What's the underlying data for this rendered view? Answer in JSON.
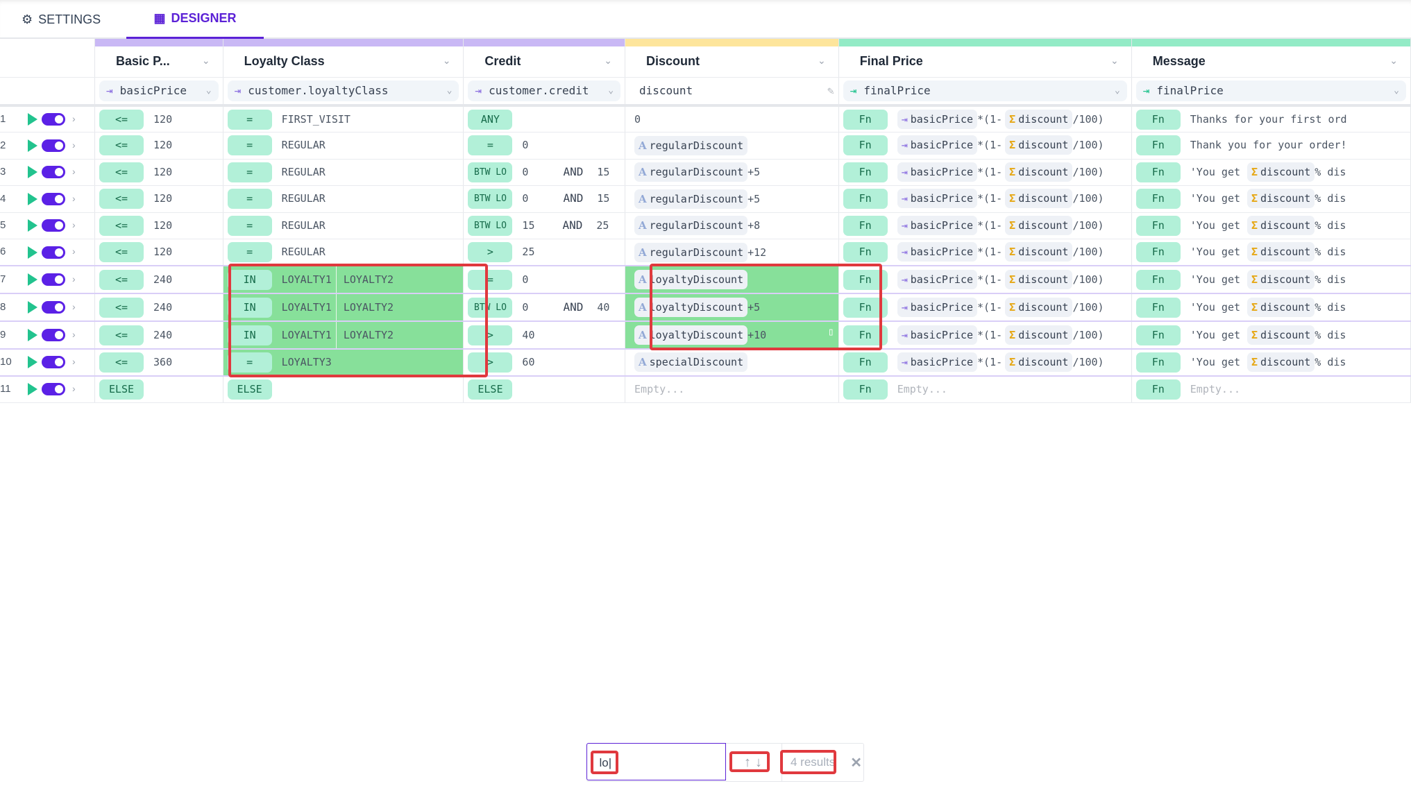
{
  "tabs": [
    {
      "label": "SETTINGS",
      "icon": "gear-icon"
    },
    {
      "label": "DESIGNER",
      "icon": "table-icon",
      "active": true
    }
  ],
  "colors": {
    "accent": "#5b21d6",
    "input_bar": "#c9b8f5",
    "output_bar_discount": "#fde59c",
    "output_bar": "#93ebc6",
    "badge": "#b2f0d8",
    "highlight": "#87e09a",
    "search_highlight": "#e0393e"
  },
  "columns": [
    {
      "title": "Basic P...",
      "expr": "basicPrice",
      "type": "input",
      "bar": "#c9b8f5"
    },
    {
      "title": "Loyalty Class",
      "expr": "customer.loyaltyClass",
      "type": "input",
      "bar": "#c9b8f5"
    },
    {
      "title": "Credit",
      "expr": "customer.credit",
      "type": "input",
      "bar": "#c9b8f5"
    },
    {
      "title": "Discount",
      "expr": "discount",
      "type": "output-editable",
      "bar": "#fde59c"
    },
    {
      "title": "Final Price",
      "expr": "finalPrice",
      "type": "output",
      "bar": "#93ebc6"
    },
    {
      "title": "Message",
      "expr": "finalPrice",
      "type": "output",
      "bar": "#93ebc6"
    }
  ],
  "rows": [
    {
      "num": "1",
      "basic": [
        "<=",
        "120"
      ],
      "loyalty": [
        "=",
        "FIRST_VISIT"
      ],
      "credit": [
        "ANY"
      ],
      "discount": {
        "text": "0"
      },
      "final": "expr",
      "message": {
        "text": "Thanks for your first ord"
      }
    },
    {
      "num": "2",
      "basic": [
        "<=",
        "120"
      ],
      "loyalty": [
        "=",
        "REGULAR"
      ],
      "credit": [
        "=",
        "0"
      ],
      "discount": {
        "var": "regularDiscount",
        "suffix": ""
      },
      "final": "expr",
      "message": {
        "text": "Thank you for your order!"
      }
    },
    {
      "num": "3",
      "basic": [
        "<=",
        "120"
      ],
      "loyalty": [
        "=",
        "REGULAR"
      ],
      "credit": [
        "BTW LO",
        "0",
        "AND",
        "15"
      ],
      "discount": {
        "var": "regularDiscount",
        "suffix": "+5"
      },
      "final": "expr",
      "message": {
        "pre": "'You get",
        "var": "discount",
        "post": "% dis"
      }
    },
    {
      "num": "4",
      "basic": [
        "<=",
        "120"
      ],
      "loyalty": [
        "=",
        "REGULAR"
      ],
      "credit": [
        "BTW LO",
        "0",
        "AND",
        "15"
      ],
      "discount": {
        "var": "regularDiscount",
        "suffix": "+5"
      },
      "final": "expr",
      "message": {
        "pre": "'You get",
        "var": "discount",
        "post": "% dis"
      }
    },
    {
      "num": "5",
      "basic": [
        "<=",
        "120"
      ],
      "loyalty": [
        "=",
        "REGULAR"
      ],
      "credit": [
        "BTW LO",
        "15",
        "AND",
        "25"
      ],
      "discount": {
        "var": "regularDiscount",
        "suffix": "+8"
      },
      "final": "expr",
      "message": {
        "pre": "'You get",
        "var": "discount",
        "post": "% dis"
      }
    },
    {
      "num": "6",
      "basic": [
        "<=",
        "120"
      ],
      "loyalty": [
        "=",
        "REGULAR"
      ],
      "credit": [
        ">",
        "25"
      ],
      "discount": {
        "var": "regularDiscount",
        "suffix": "+12"
      },
      "final": "expr",
      "message": {
        "pre": "'You get",
        "var": "discount",
        "post": "% dis"
      }
    },
    {
      "num": "7",
      "basic": [
        "<=",
        "240"
      ],
      "loyalty": [
        "IN",
        "LOYALTY1",
        "LOYALTY2"
      ],
      "loyalty_match": true,
      "credit": [
        "=",
        "0"
      ],
      "discount": {
        "var": "loyaltyDiscount",
        "suffix": ""
      },
      "discount_match": true,
      "final": "expr",
      "message": {
        "pre": "'You get",
        "var": "discount",
        "post": "% dis"
      }
    },
    {
      "num": "8",
      "basic": [
        "<=",
        "240"
      ],
      "loyalty": [
        "IN",
        "LOYALTY1",
        "LOYALTY2"
      ],
      "loyalty_match": true,
      "credit": [
        "BTW LO",
        "0",
        "AND",
        "40"
      ],
      "discount": {
        "var": "loyaltyDiscount",
        "suffix": "+5"
      },
      "discount_match": true,
      "final": "expr",
      "message": {
        "pre": "'You get",
        "var": "discount",
        "post": "% dis"
      }
    },
    {
      "num": "9",
      "basic": [
        "<=",
        "240"
      ],
      "loyalty": [
        "IN",
        "LOYALTY1",
        "LOYALTY2"
      ],
      "loyalty_match": true,
      "credit": [
        ">",
        "40"
      ],
      "discount": {
        "var": "loyaltyDiscount",
        "suffix": "+10"
      },
      "discount_match": true,
      "final": "expr",
      "message": {
        "pre": "'You get",
        "var": "discount",
        "post": "% dis"
      }
    },
    {
      "num": "10",
      "basic": [
        "<=",
        "360"
      ],
      "loyalty": [
        "=",
        "LOYALTY3"
      ],
      "loyalty_match": true,
      "credit": [
        ">",
        "60"
      ],
      "discount": {
        "var": "specialDiscount",
        "suffix": ""
      },
      "final": "expr",
      "message": {
        "pre": "'You get",
        "var": "discount",
        "post": "% dis"
      }
    },
    {
      "num": "11",
      "basic": [
        "ELSE"
      ],
      "loyalty": [
        "ELSE"
      ],
      "credit": [
        "ELSE"
      ],
      "discount": {
        "placeholder": "Empty..."
      },
      "final": "empty",
      "message": {
        "placeholder": "Empty..."
      }
    }
  ],
  "final_expr": {
    "badge": "Fn",
    "var1": "basicPrice",
    "op1": "*(1-",
    "var2": "discount",
    "op2": "/100)",
    "placeholder": "Empty..."
  },
  "search": {
    "value": "lo",
    "up": "↑",
    "down": "↓",
    "results": "4 results",
    "close": "✕"
  }
}
